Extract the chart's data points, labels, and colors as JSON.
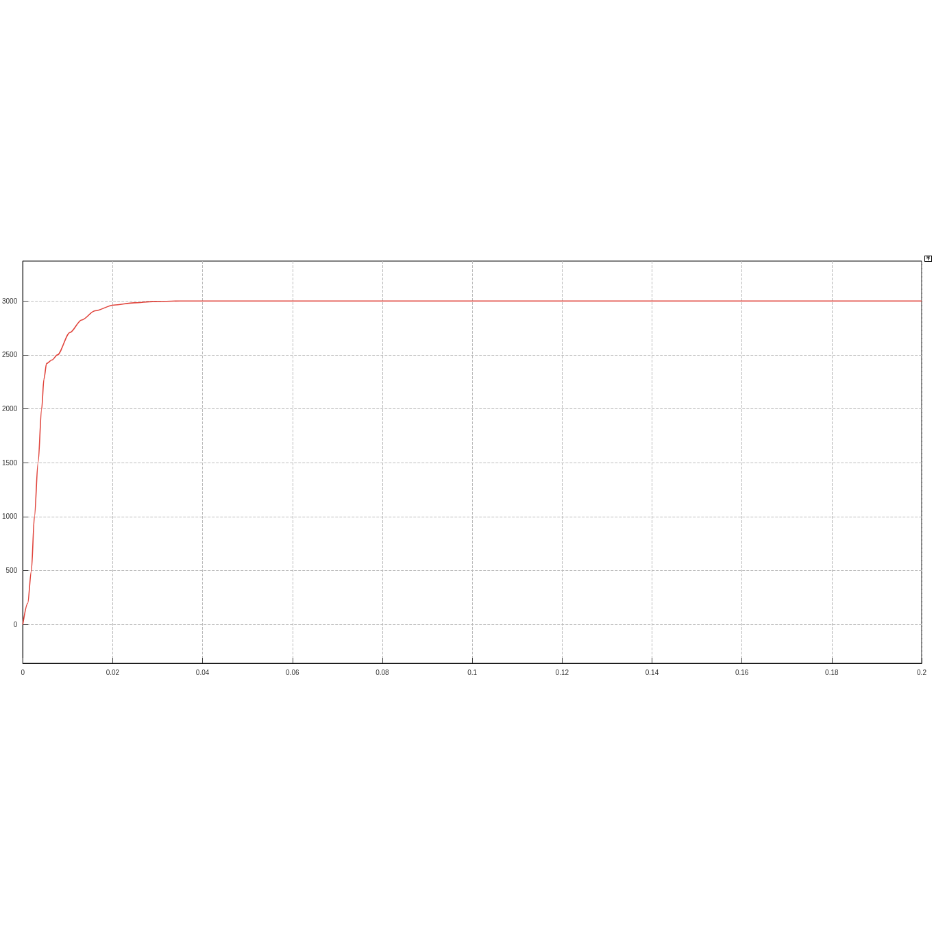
{
  "chart_data": {
    "type": "line",
    "xlim": [
      0,
      0.2
    ],
    "ylim": [
      -360,
      3370
    ],
    "xticks": [
      0,
      0.02,
      0.04,
      0.06,
      0.08,
      0.1,
      0.12,
      0.14,
      0.16,
      0.18,
      0.2
    ],
    "yticks": [
      0,
      500,
      1000,
      1500,
      2000,
      2500,
      3000
    ],
    "grid": true,
    "line_style": "solid",
    "marker": "none",
    "series": [
      {
        "color": "#e0443c",
        "x": [
          0,
          0.0011,
          0.0019,
          0.0026,
          0.0034,
          0.0042,
          0.0047,
          0.0053,
          0.0065,
          0.0077,
          0.0105,
          0.0131,
          0.0161,
          0.0202,
          0.0248,
          0.0289,
          0.035,
          0.05,
          0.1,
          0.15,
          0.2
        ],
        "values": [
          0,
          197,
          494,
          1002,
          1500,
          1998,
          2274,
          2421,
          2453,
          2500,
          2708,
          2824,
          2909,
          2962,
          2983,
          2994,
          3000,
          3000,
          3000,
          3000,
          3000
        ]
      }
    ]
  }
}
